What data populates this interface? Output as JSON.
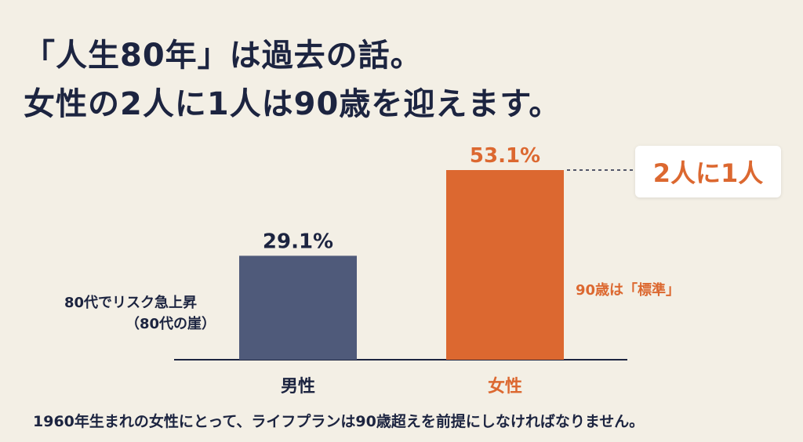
{
  "title": {
    "line1": "「人生80年」は過去の話。",
    "line2": "女性の2人に1人は90歳を迎えます。"
  },
  "colors": {
    "background": "#f3efe5",
    "male": "#4f5a7a",
    "female": "#dc6830",
    "text": "#1c2440"
  },
  "chart_data": {
    "type": "bar",
    "categories": [
      "男性",
      "女性"
    ],
    "values": [
      29.1,
      53.1
    ],
    "value_labels": [
      "29.1%",
      "53.1%"
    ],
    "unit": "%",
    "ylim": [
      0,
      53.1
    ],
    "grid": false,
    "annotations": {
      "male_note_line1": "80代でリスク急上昇",
      "male_note_line2": "（80代の崖）",
      "female_note": "90歳は「標準」",
      "callout": "2人に1人"
    }
  },
  "footer": "1960年生まれの女性にとって、ライフプランは90歳超えを前提にしなければなりません。"
}
